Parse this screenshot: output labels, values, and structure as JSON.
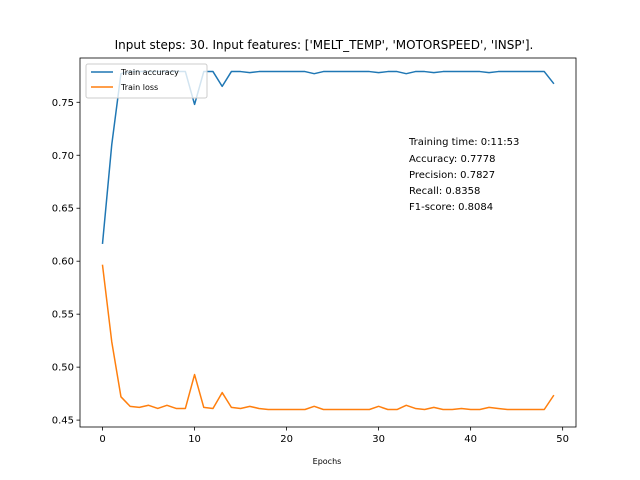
{
  "chart_data": {
    "type": "line",
    "title": "Input steps: 30. Input features: ['MELT_TEMP', 'MOTORSPEED', 'INSP'].",
    "xlabel": "Epochs",
    "ylabel": "",
    "xlim": [
      -2.45,
      51.45
    ],
    "ylim": [
      0.4435,
      0.7918
    ],
    "xticks": [
      0,
      10,
      20,
      30,
      40,
      50
    ],
    "yticks": [
      0.45,
      0.5,
      0.55,
      0.6,
      0.65,
      0.7,
      0.75
    ],
    "ytick_labels": [
      "0.45",
      "0.50",
      "0.55",
      "0.60",
      "0.65",
      "0.70",
      "0.75"
    ],
    "grid": false,
    "legend_position": "top-left",
    "x": [
      0,
      1,
      2,
      3,
      4,
      5,
      6,
      7,
      8,
      9,
      10,
      11,
      12,
      13,
      14,
      15,
      16,
      17,
      18,
      19,
      20,
      21,
      22,
      23,
      24,
      25,
      26,
      27,
      28,
      29,
      30,
      31,
      32,
      33,
      34,
      35,
      36,
      37,
      38,
      39,
      40,
      41,
      42,
      43,
      44,
      45,
      46,
      47,
      48,
      49
    ],
    "series": [
      {
        "name": "Train accuracy",
        "color": "#1f77b4",
        "values": [
          0.617,
          0.71,
          0.777,
          0.779,
          0.779,
          0.779,
          0.779,
          0.779,
          0.779,
          0.779,
          0.748,
          0.779,
          0.779,
          0.765,
          0.779,
          0.779,
          0.778,
          0.779,
          0.779,
          0.779,
          0.779,
          0.779,
          0.779,
          0.777,
          0.779,
          0.779,
          0.779,
          0.779,
          0.779,
          0.779,
          0.778,
          0.779,
          0.779,
          0.777,
          0.779,
          0.779,
          0.778,
          0.779,
          0.779,
          0.779,
          0.779,
          0.779,
          0.778,
          0.779,
          0.779,
          0.779,
          0.779,
          0.779,
          0.779,
          0.768
        ]
      },
      {
        "name": "Train loss",
        "color": "#ff7f0e",
        "values": [
          0.596,
          0.524,
          0.472,
          0.463,
          0.462,
          0.464,
          0.461,
          0.464,
          0.461,
          0.461,
          0.493,
          0.462,
          0.461,
          0.476,
          0.462,
          0.461,
          0.463,
          0.461,
          0.46,
          0.46,
          0.46,
          0.46,
          0.46,
          0.463,
          0.46,
          0.46,
          0.46,
          0.46,
          0.46,
          0.46,
          0.463,
          0.46,
          0.46,
          0.464,
          0.461,
          0.46,
          0.462,
          0.46,
          0.46,
          0.461,
          0.46,
          0.46,
          0.462,
          0.461,
          0.46,
          0.46,
          0.46,
          0.46,
          0.46,
          0.473
        ]
      }
    ],
    "annotations": [
      "Training time: 0:11:53",
      "Accuracy: 0.7778",
      "Precision: 0.7827",
      "Recall: 0.8358",
      "F1-score: 0.8084"
    ]
  }
}
